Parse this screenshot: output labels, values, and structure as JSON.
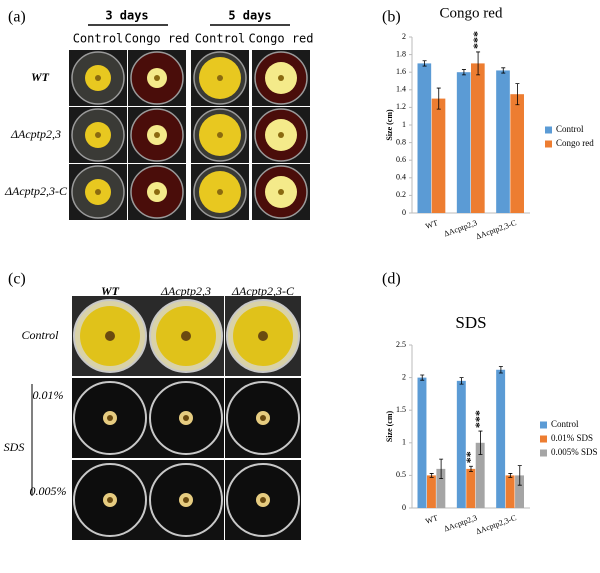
{
  "panel_a": {
    "label": "(a)",
    "groups": [
      "3 days",
      "5 days"
    ],
    "columns": [
      "Control",
      "Congo red",
      "Control",
      "Congo red"
    ],
    "rows": [
      "WT",
      "ΔAcptp2,3",
      "ΔAcptp2,3-C"
    ]
  },
  "panel_c": {
    "label": "(c)",
    "columns": [
      "WT",
      "ΔAcptp2,3",
      "ΔAcptp2,3-C"
    ],
    "rows": [
      "Control",
      "0.01%",
      "0.005%"
    ],
    "group": "SDS"
  },
  "chart_data": [
    {
      "type": "bar",
      "panel_label": "(b)",
      "title": "Congo red",
      "y_label": "Size (cm)",
      "categories": [
        "WT",
        "ΔAcptp2,3",
        "ΔAcptp2,3-C"
      ],
      "series": [
        {
          "name": "Control",
          "color": "#5b9bd5",
          "values": [
            1.7,
            1.6,
            1.62
          ],
          "errors": [
            0.03,
            0.03,
            0.03
          ],
          "markers": [
            null,
            null,
            null
          ]
        },
        {
          "name": "Congo red",
          "color": "#ed7d31",
          "values": [
            1.3,
            1.7,
            1.35
          ],
          "errors": [
            0.12,
            0.13,
            0.12
          ],
          "markers": [
            null,
            "***",
            null
          ]
        }
      ],
      "ylim": [
        0,
        2
      ],
      "yticks": [
        0,
        0.2,
        0.4,
        0.6,
        0.8,
        1,
        1.2,
        1.4,
        1.6,
        1.8,
        2
      ]
    },
    {
      "type": "bar",
      "panel_label": "(d)",
      "title": "SDS",
      "y_label": "Size (cm)",
      "categories": [
        "WT",
        "ΔAcptp2,3",
        "ΔAcptp2,3-C"
      ],
      "series": [
        {
          "name": "Control",
          "color": "#5b9bd5",
          "values": [
            2.0,
            1.95,
            2.12
          ],
          "errors": [
            0.04,
            0.05,
            0.05
          ],
          "markers": [
            null,
            null,
            null
          ]
        },
        {
          "name": "0.01% SDS",
          "color": "#ed7d31",
          "values": [
            0.5,
            0.6,
            0.5
          ],
          "errors": [
            0.03,
            0.04,
            0.03
          ],
          "markers": [
            null,
            "**",
            null
          ]
        },
        {
          "name": "0.005% SDS",
          "color": "#a5a5a5",
          "values": [
            0.6,
            1.0,
            0.5
          ],
          "errors": [
            0.15,
            0.18,
            0.15
          ],
          "markers": [
            null,
            "***",
            null
          ]
        }
      ],
      "ylim": [
        0,
        2.5
      ],
      "yticks": [
        0,
        0.5,
        1,
        1.5,
        2,
        2.5
      ]
    }
  ]
}
